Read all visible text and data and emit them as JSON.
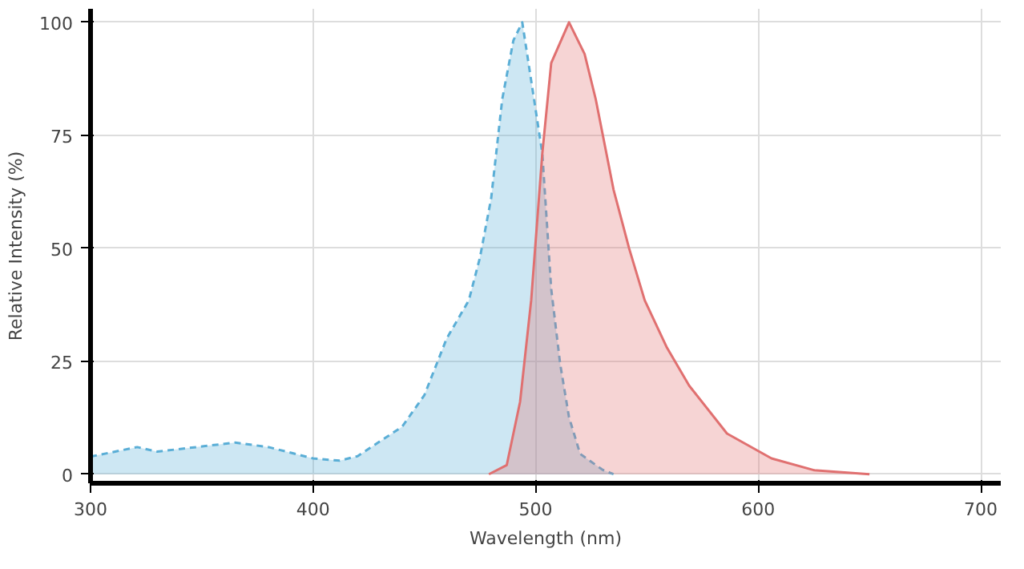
{
  "chart_data": {
    "type": "area",
    "xlabel": "Wavelength (nm)",
    "ylabel": "Relative Intensity (%)",
    "xlim": [
      300,
      709
    ],
    "ylim": [
      -2,
      103
    ],
    "xticks": [
      300,
      400,
      500,
      600,
      700
    ],
    "yticks": [
      0,
      25,
      50,
      75,
      100
    ],
    "grid": true,
    "series": [
      {
        "color": "#5aaed6",
        "line_style": "dashed",
        "x": [
          300,
          321,
          330,
          365,
          380,
          400,
          412,
          420,
          440,
          450,
          460,
          470,
          475,
          480,
          485,
          490,
          494,
          503,
          505,
          507,
          511,
          515,
          520,
          530,
          535
        ],
        "values": [
          3.9,
          6,
          5,
          7,
          6,
          3.5,
          3,
          4,
          10.5,
          17.5,
          30,
          38.5,
          48,
          61,
          83,
          96,
          100,
          71,
          56,
          41,
          24.5,
          12.6,
          4.5,
          1,
          0
        ]
      },
      {
        "color": "#e07070",
        "line_style": "solid",
        "x": [
          479,
          487,
          493,
          498,
          503,
          507,
          515,
          522,
          527,
          535,
          542,
          549,
          559,
          569,
          586,
          606,
          625,
          650
        ],
        "values": [
          0,
          2,
          16,
          38.5,
          71,
          91,
          100,
          93,
          83,
          63,
          50,
          38.5,
          28,
          19.6,
          9,
          3.5,
          0.9,
          0
        ]
      }
    ]
  }
}
